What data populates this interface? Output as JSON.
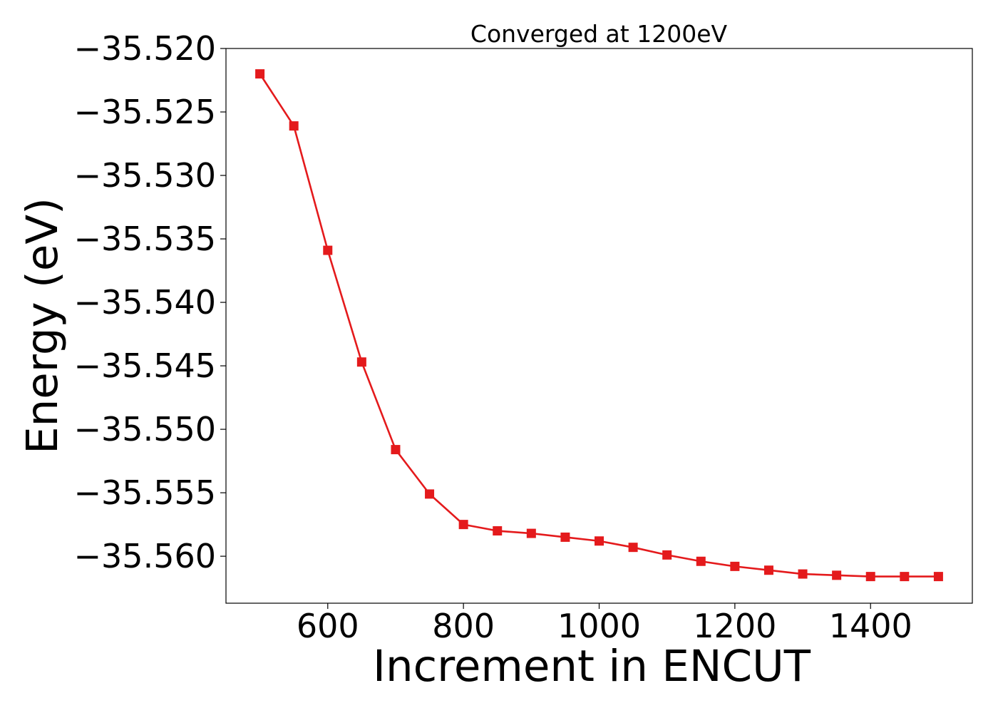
{
  "chart_data": {
    "type": "line",
    "title": "Converged at 1200eV",
    "xlabel": "Increment in ENCUT",
    "ylabel": "Energy (eV)",
    "x": [
      500,
      550,
      600,
      650,
      700,
      750,
      800,
      850,
      900,
      950,
      1000,
      1050,
      1100,
      1150,
      1200,
      1250,
      1300,
      1350,
      1400,
      1450,
      1500
    ],
    "series": [
      {
        "values": [
          -35.522,
          -35.5261,
          -35.5359,
          -35.5447,
          -35.5516,
          -35.5551,
          -35.5575,
          -35.558,
          -35.5582,
          -35.5585,
          -35.5588,
          -35.5593,
          -35.5599,
          -35.5604,
          -35.5608,
          -35.5611,
          -35.5614,
          -35.5615,
          -35.5616,
          -35.5616,
          -35.5616
        ],
        "color": "#e41a1c",
        "marker": "square"
      }
    ],
    "xlim": [
      450,
      1550
    ],
    "ylim": [
      -35.5637,
      -35.52
    ],
    "xticks": [
      600,
      800,
      1000,
      1200,
      1400
    ],
    "xtick_labels": [
      "600",
      "800",
      "1000",
      "1200",
      "1400"
    ],
    "yticks": [
      -35.52,
      -35.525,
      -35.53,
      -35.535,
      -35.54,
      -35.545,
      -35.55,
      -35.555,
      -35.56
    ],
    "ytick_labels": [
      "−35.520",
      "−35.525",
      "−35.530",
      "−35.535",
      "−35.540",
      "−35.545",
      "−35.550",
      "−35.555",
      "−35.560"
    ],
    "grid": false,
    "legend": "none"
  }
}
